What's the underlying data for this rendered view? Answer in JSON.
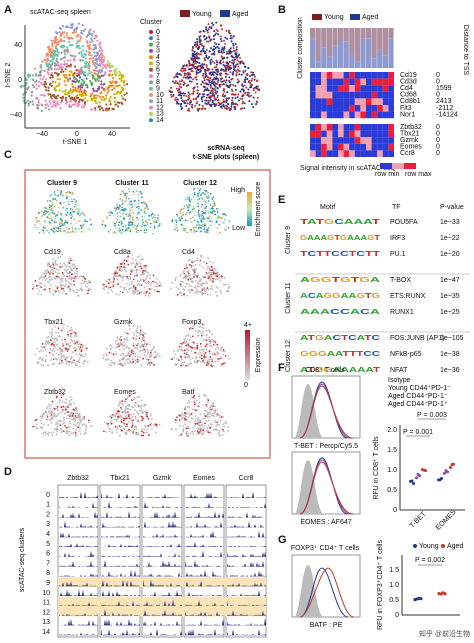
{
  "watermark": "知乎 @前沿生物",
  "panel_a": {
    "letter": "A",
    "title": "scATAC-seq spleen",
    "legend_title": "Cluster",
    "clusters": [
      "0",
      "1",
      "2",
      "3",
      "4",
      "5",
      "6",
      "7",
      "8",
      "9",
      "10",
      "11",
      "12",
      "13",
      "14"
    ],
    "groups": [
      "Young",
      "Aged"
    ],
    "y_axis": "t-SNE 2",
    "x_axis": "t-SNE 1",
    "x_ticks": [
      "−40",
      "0",
      "40"
    ],
    "y_ticks": [
      "40",
      "0",
      "−40"
    ]
  },
  "panel_b": {
    "letter": "B",
    "groups": [
      "Young",
      "Aged"
    ],
    "composition_label": "Cluster composition",
    "distance_label": "Distance to TSS",
    "genes_top": [
      {
        "gene": "Cd19",
        "distance": "0"
      },
      {
        "gene": "Cd3d",
        "distance": "0"
      },
      {
        "gene": "Cd4",
        "distance": "1599"
      },
      {
        "gene": "Cd68",
        "distance": "0"
      },
      {
        "gene": "Cd8b1",
        "distance": "2413"
      },
      {
        "gene": "Flt3",
        "distance": "-2112"
      },
      {
        "gene": "Nor1",
        "distance": "-14124"
      }
    ],
    "genes_bottom": [
      {
        "gene": "Zbtb32",
        "distance": "0"
      },
      {
        "gene": "Tbx21",
        "distance": "0"
      },
      {
        "gene": "Gzmk",
        "distance": "0"
      },
      {
        "gene": "Eomes",
        "distance": "0"
      },
      {
        "gene": "Ccr8",
        "distance": "0"
      }
    ],
    "legend_title": "Signal intensity in scATAC-seq",
    "legend_min": "row min",
    "legend_max": "row max"
  },
  "panel_c": {
    "letter": "C",
    "note": [
      "scRNA-seq",
      "t-SNE plots (spleen)"
    ],
    "clusters": [
      "Cluster 9",
      "Cluster 11",
      "Cluster 12"
    ],
    "enrichment_high": "High",
    "enrichment_low": "Low",
    "enrichment_label": "Enrichment score",
    "genes": [
      "Cd19",
      "Cd8a",
      "Cd4",
      "Tbx21",
      "Gzmk",
      "Foxp3",
      "Zbtb32",
      "Eomes",
      "Batf"
    ],
    "expression_max": "4+",
    "expression_min": "0",
    "expression_label": "Expression"
  },
  "panel_d": {
    "letter": "D",
    "genes": [
      "Zbtb32",
      "Tbx21",
      "Gzmk",
      "Eomes",
      "Ccr8"
    ],
    "axis_label": "scATAC-seq clusters",
    "clusters": [
      "0",
      "1",
      "2",
      "3",
      "4",
      "5",
      "6",
      "7",
      "8",
      "9",
      "10",
      "11",
      "12",
      "13",
      "14"
    ]
  },
  "panel_e": {
    "letter": "E",
    "headers": [
      "Motif",
      "TF",
      "P-value"
    ],
    "groups": [
      {
        "name": "Cluster 9",
        "rows": [
          {
            "motif": "TATGCAAAT",
            "tf": "POU5FA",
            "p": "1e−33"
          },
          {
            "motif": "GAAAGTGAAAGT",
            "tf": "IRF3",
            "p": "1e−22"
          },
          {
            "motif": "TCTTCCTCTT",
            "tf": "PU.1",
            "p": "1e−20"
          }
        ]
      },
      {
        "name": "Cluster 11",
        "rows": [
          {
            "motif": "AGGTGTGA",
            "tf": "T-BOX",
            "p": "1e−47"
          },
          {
            "motif": "ACAGGAAGTG",
            "tf": "ETS:RUNX",
            "p": "1e−35"
          },
          {
            "motif": "AAACCACA",
            "tf": "RUNX1",
            "p": "1e−25"
          }
        ]
      },
      {
        "name": "Cluster 12",
        "rows": [
          {
            "motif": "ATGACTCATC",
            "tf": "FOS:JUNB (AP1)",
            "p": "1e−105"
          },
          {
            "motif": "GGGAATTTCC",
            "tf": "NFkB-p65",
            "p": "1e−38"
          },
          {
            "motif": "ATGGAAAAAT",
            "tf": "NFAT",
            "p": "1e−36"
          }
        ]
      }
    ]
  },
  "panel_f": {
    "letter": "F",
    "hist_title": "CD8⁺ T cells",
    "hist_x1": "T-BET : Percp/Cy5.5",
    "hist_x2": "EOMES : AF647",
    "legend": [
      "Isotype",
      "Young CD44⁺PD-1⁻",
      "Aged CD44⁺PD-1⁻",
      "Aged CD44⁺PD-1⁺"
    ],
    "p_values": [
      "P = 0.003",
      "P = 0.001"
    ],
    "y_label": "RFU in CD8⁺ T cells",
    "categories": [
      "T-BET",
      "EOMES"
    ],
    "y_ticks": [
      "0",
      "0.5",
      "1.0",
      "1.5",
      "2.0"
    ]
  },
  "panel_g": {
    "letter": "G",
    "hist_title": "FOXP3⁺ CD4⁺ T cells",
    "legend": [
      "Young",
      "Aged"
    ],
    "p_value": "P = 0.002",
    "hist_x": "BATF : PE",
    "y_label": "RFU in FOXP3⁺CD4⁺ T cells",
    "y_ticks": [
      "0",
      "0.5",
      "1.0",
      "1.5"
    ]
  }
}
